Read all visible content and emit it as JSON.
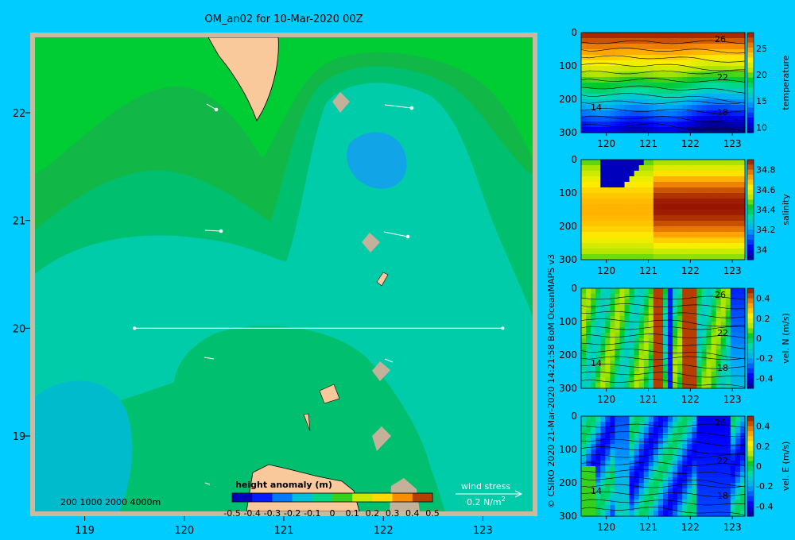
{
  "title": "OM_an02 for 10-Mar-2020 00Z",
  "credit": "© CSIRO 2020   21-Mar-2020 14:21:58 BoM OceanMAPS v3",
  "colors": {
    "page_bg": "#00ccff",
    "land": "#f9c89b",
    "coast_shade": "#c4b19a",
    "frame": "#c8b99f",
    "vector": "#ffffff"
  },
  "chart_data": [
    {
      "type": "heatmap",
      "id": "map",
      "x_ticks": [
        "119",
        "120",
        "121",
        "122",
        "123"
      ],
      "y_ticks": [
        "22",
        "21",
        "20",
        "19"
      ],
      "xlim": [
        118.5,
        123.5
      ],
      "ylim": [
        18.3,
        22.7
      ],
      "section_line": {
        "lat": 20.0,
        "lon_start": 119.5,
        "lon_end": 123.2
      },
      "depth_legend": "200  1000  2000  4000m",
      "colorbar": {
        "label": "height anomaly  (m)",
        "ticks": [
          "-0.5",
          "-0.4",
          "-0.3",
          "-0.2",
          "-0.1",
          "0",
          "0.1",
          "0.2",
          "0.3",
          "0.4",
          "0.5"
        ],
        "range": [
          -0.5,
          0.5
        ]
      },
      "wind_legend": {
        "label": "wind stress",
        "value": "0.2 N/m",
        "superscript": "2"
      }
    },
    {
      "type": "heatmap",
      "id": "temperature",
      "colorbar_label": "temperature",
      "colorbar_ticks": [
        "25",
        "20",
        "15",
        "10"
      ],
      "range": [
        9,
        28
      ],
      "y_ticks": [
        "0",
        "100",
        "200",
        "300"
      ],
      "x_ticks": [
        "120",
        "121",
        "122",
        "123"
      ],
      "contour_labels": [
        "26",
        "22",
        "18",
        "14"
      ]
    },
    {
      "type": "heatmap",
      "id": "salinity",
      "colorbar_label": "salinity",
      "colorbar_ticks": [
        "34.8",
        "34.6",
        "34.4",
        "34.2",
        "34"
      ],
      "range": [
        33.9,
        34.9
      ],
      "y_ticks": [
        "0",
        "100",
        "200",
        "300"
      ],
      "x_ticks": [
        "120",
        "121",
        "122",
        "123"
      ],
      "contour_labels": []
    },
    {
      "type": "heatmap",
      "id": "vel-n",
      "colorbar_label": "vel. N  (m/s)",
      "colorbar_ticks": [
        "0.4",
        "0.2",
        "0",
        "-0.2",
        "-0.4"
      ],
      "range": [
        -0.5,
        0.5
      ],
      "y_ticks": [
        "0",
        "100",
        "200",
        "300"
      ],
      "x_ticks": [
        "120",
        "121",
        "122",
        "123"
      ],
      "contour_labels": [
        "26",
        "22",
        "18",
        "14"
      ]
    },
    {
      "type": "heatmap",
      "id": "vel-e",
      "colorbar_label": "vel. E  (m/s)",
      "colorbar_ticks": [
        "0.4",
        "0.2",
        "0",
        "-0.2",
        "-0.4"
      ],
      "range": [
        -0.5,
        0.5
      ],
      "y_ticks": [
        "0",
        "100",
        "200",
        "300"
      ],
      "x_ticks": [
        "120",
        "121",
        "122",
        "123"
      ],
      "contour_labels": [
        "26",
        "22",
        "18",
        "14"
      ]
    }
  ]
}
